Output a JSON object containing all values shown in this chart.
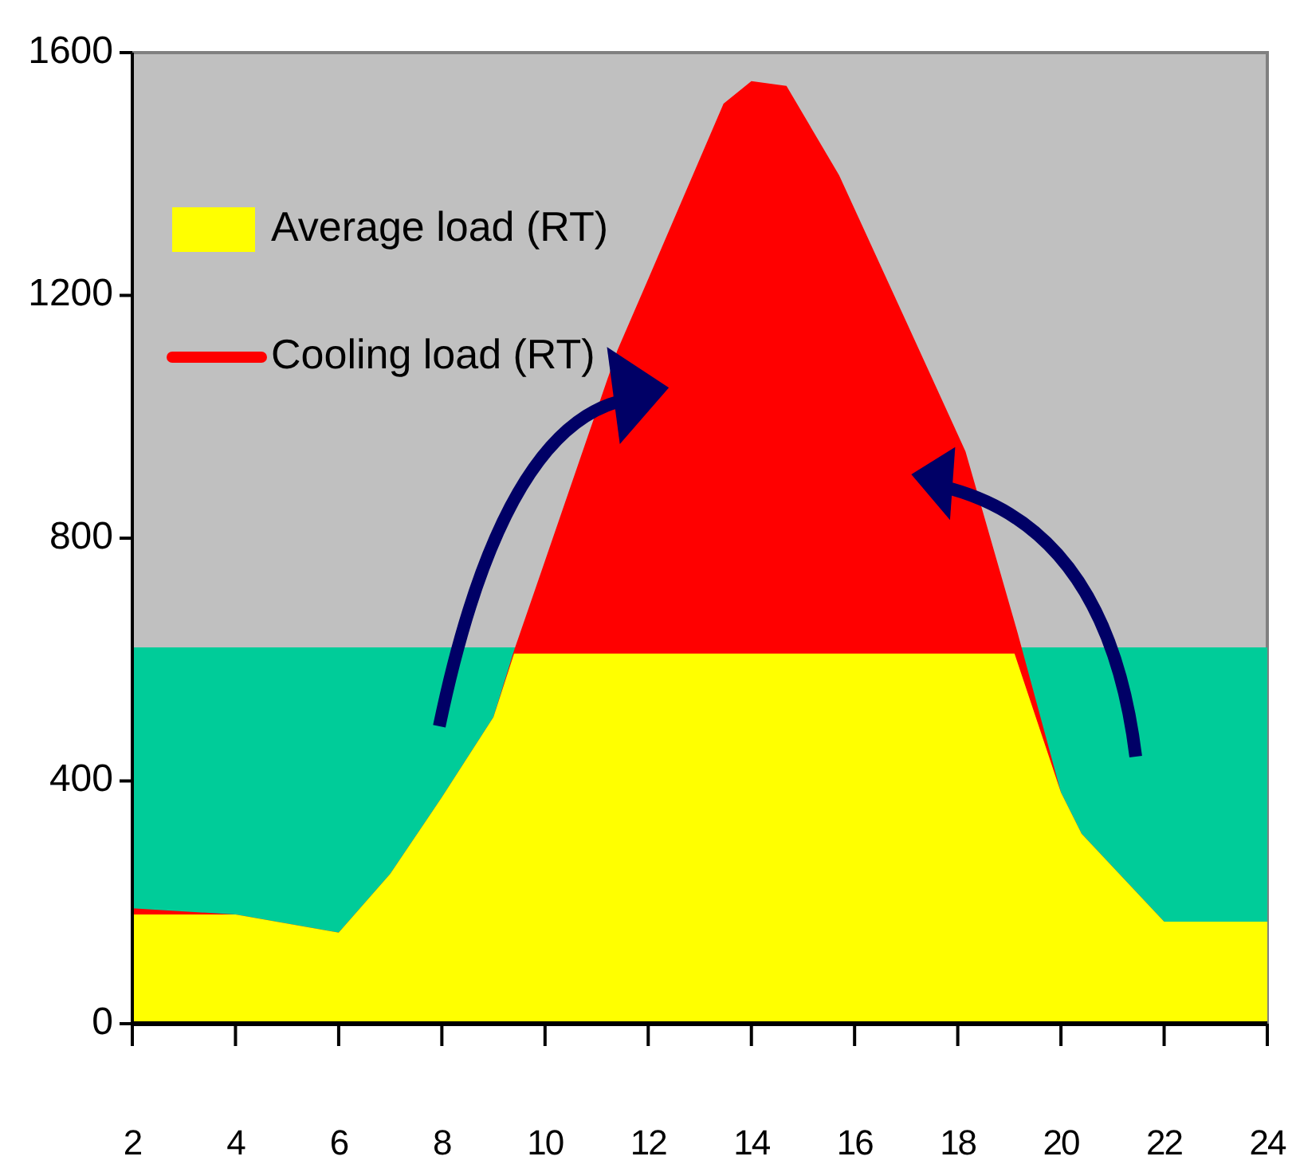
{
  "chart_data": {
    "type": "area",
    "xlim": [
      2,
      24
    ],
    "ylim": [
      0,
      1600
    ],
    "xticks": [
      2,
      4,
      6,
      8,
      10,
      12,
      14,
      16,
      18,
      20,
      22,
      24
    ],
    "yticks": [
      0,
      400,
      800,
      1200,
      1600
    ],
    "grid": false,
    "legend": "top left",
    "series": [
      {
        "color": "#00cc99",
        "x": [
          2,
          24
        ],
        "values": [
          620,
          620
        ]
      },
      {
        "name": "Cooling load (RT)",
        "color": "#ff0000",
        "x": [
          2,
          4,
          6,
          7,
          8,
          9,
          9.4,
          10,
          11.4,
          12,
          13.46,
          14,
          14.68,
          15.7,
          17,
          18.15,
          19.16,
          20,
          20.4,
          22,
          24
        ],
        "values": [
          190,
          180,
          150,
          247,
          373,
          505,
          615,
          763,
          1109,
          1227,
          1516,
          1553,
          1545,
          1398,
          1157,
          943,
          644,
          381,
          313,
          168,
          168
        ]
      },
      {
        "name": "Average load (RT)",
        "color": "#ffff00",
        "x": [
          2,
          4,
          6,
          7,
          8,
          9,
          9.4,
          19.1,
          20,
          20.4,
          22,
          24
        ],
        "values": [
          180,
          180,
          150,
          247,
          373,
          505,
          610,
          610,
          381,
          313,
          168,
          168
        ]
      }
    ]
  }
}
